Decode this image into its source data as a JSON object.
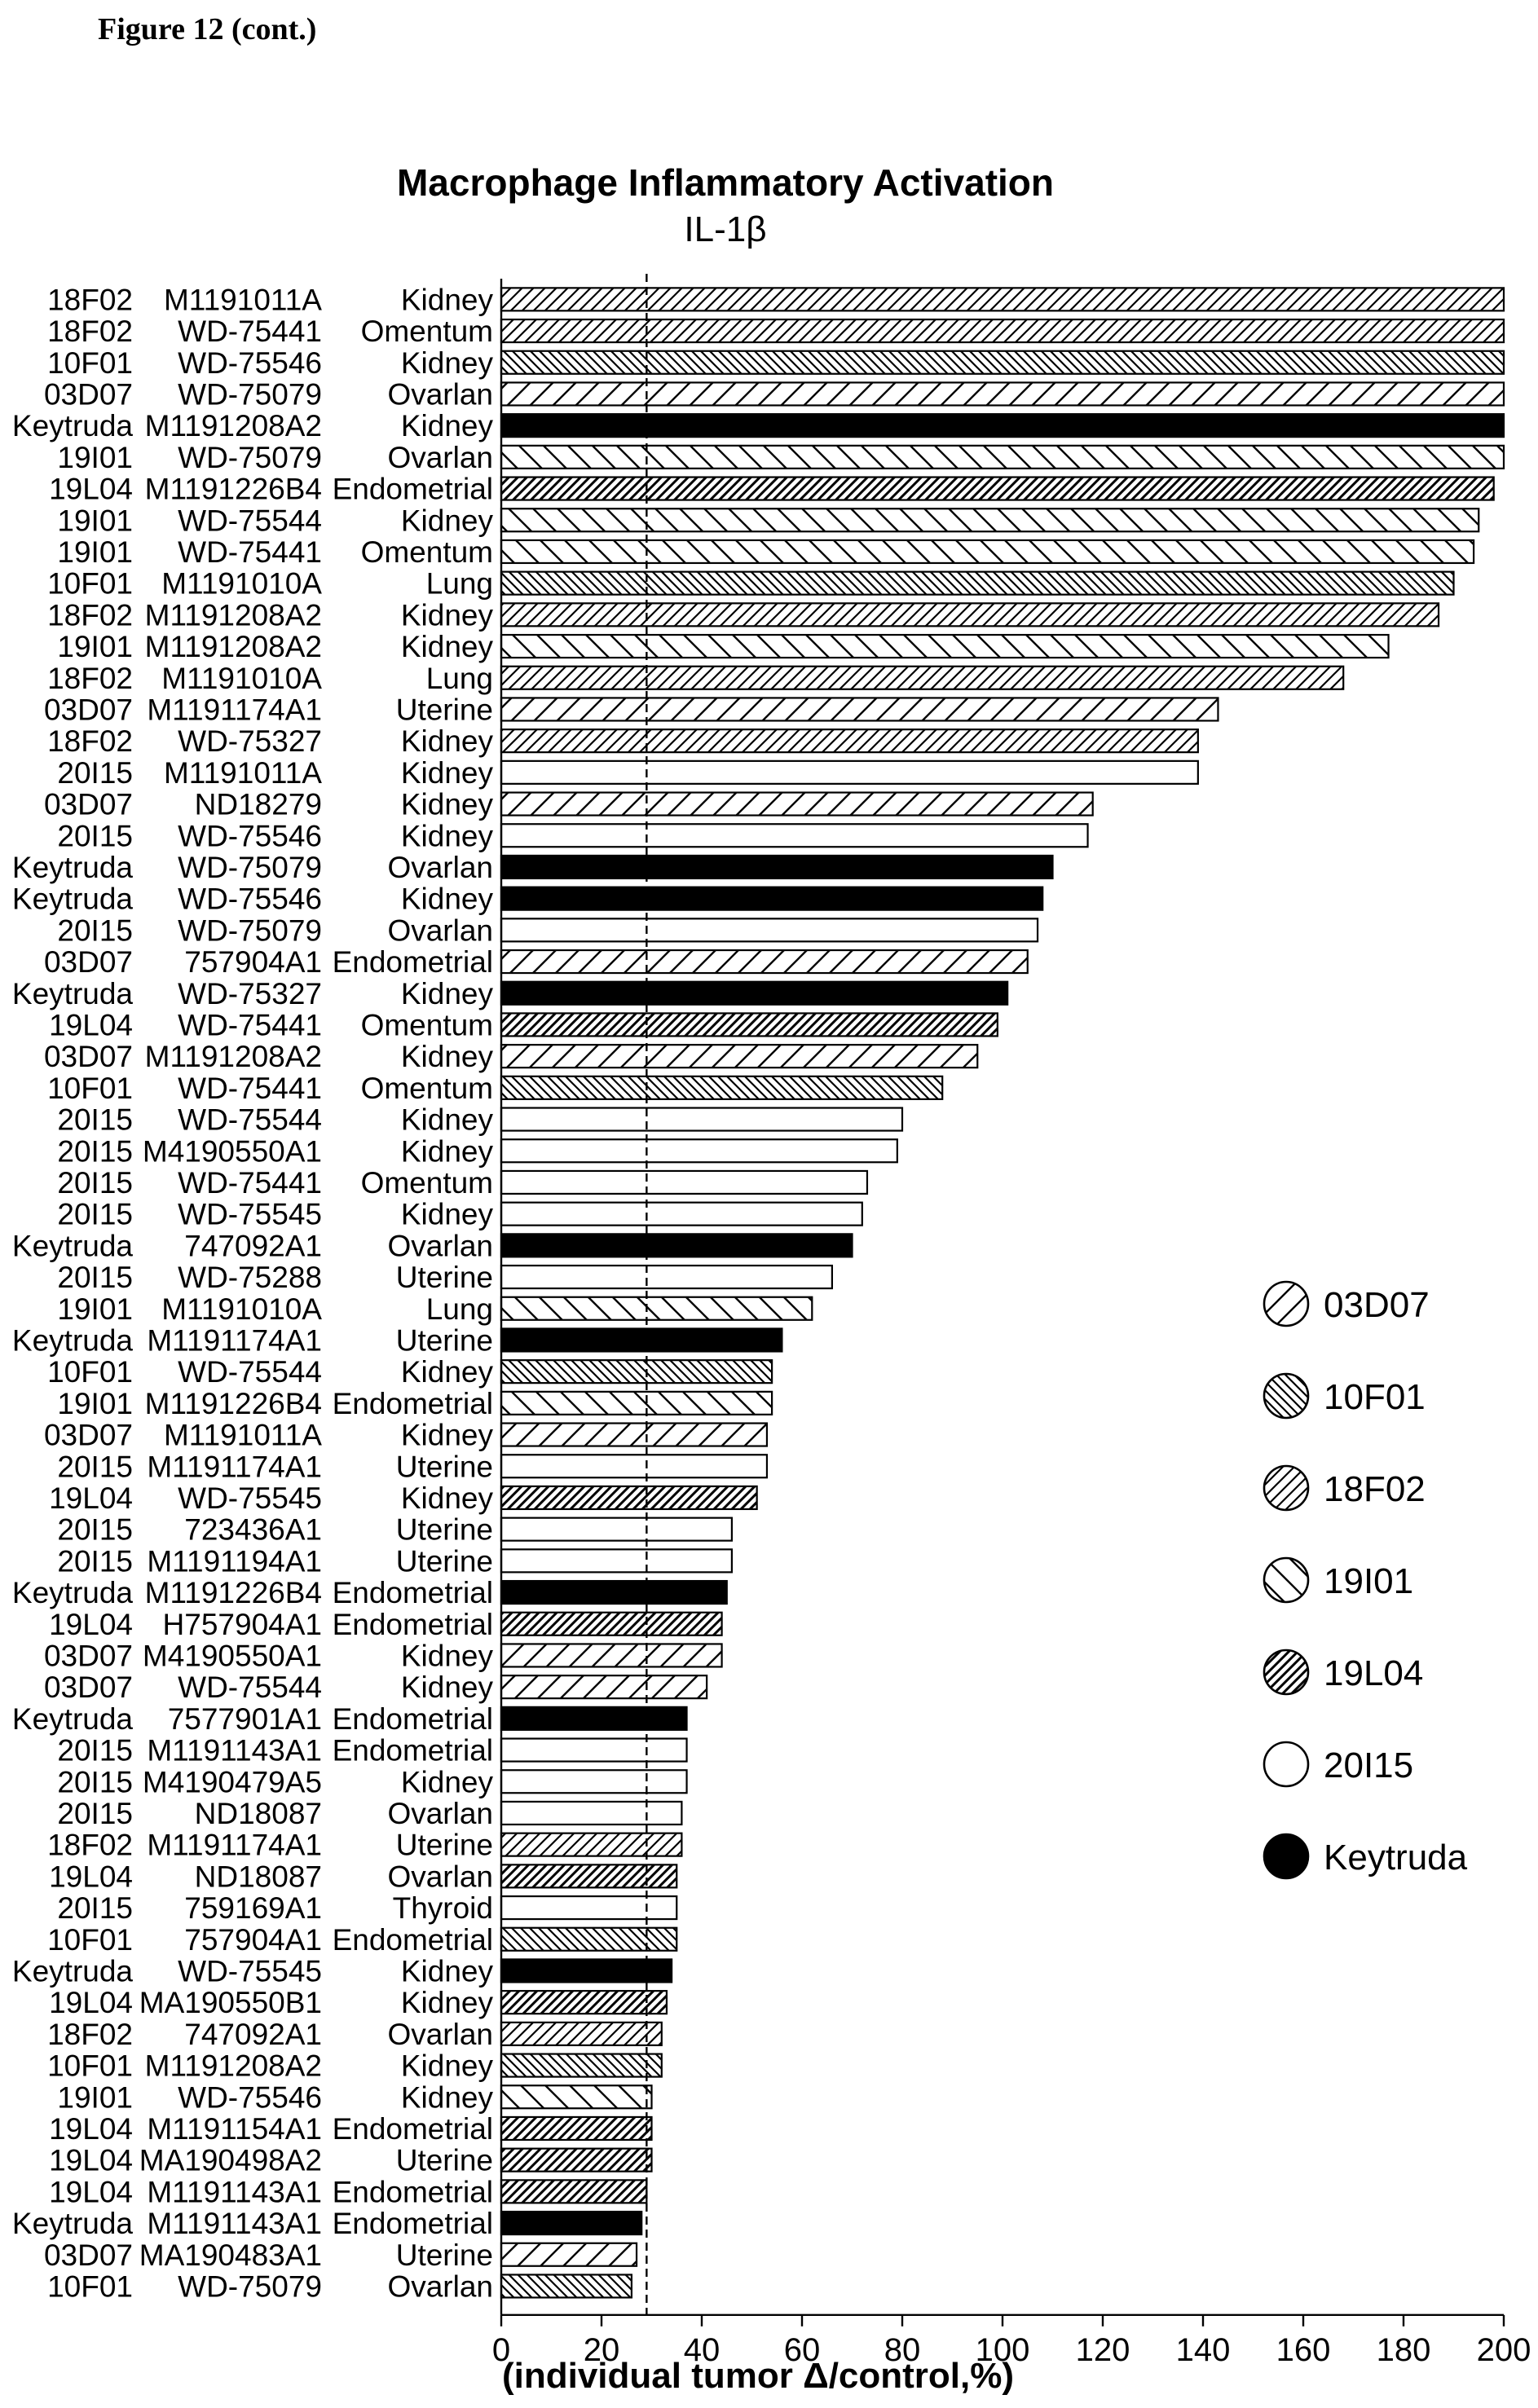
{
  "figure_label": "Figure 12 (cont.)",
  "chart_data": {
    "type": "bar",
    "orientation": "horizontal",
    "title": "Macrophage Inflammatory Activation",
    "subtitle": "IL-1β",
    "xlabel": "(individual tumor Δ/control,%)",
    "xlim": [
      0,
      200
    ],
    "xticks": [
      0,
      20,
      40,
      60,
      80,
      100,
      120,
      140,
      160,
      180,
      200
    ],
    "reference_line": 29,
    "legend_position": "right",
    "legend": [
      {
        "name": "03D07",
        "pattern": "diag-sparse"
      },
      {
        "name": "10F01",
        "pattern": "backdiag-dense"
      },
      {
        "name": "18F02",
        "pattern": "diag-dense"
      },
      {
        "name": "19I01",
        "pattern": "backdiag-sparse"
      },
      {
        "name": "19L04",
        "pattern": "diag-heavy"
      },
      {
        "name": "20I15",
        "pattern": "empty"
      },
      {
        "name": "Keytruda",
        "pattern": "solid"
      }
    ],
    "rows": [
      {
        "group": "18F02",
        "sample": "M1191011A",
        "tissue": "Kidney",
        "value": 200
      },
      {
        "group": "18F02",
        "sample": "WD-75441",
        "tissue": "Omentum",
        "value": 200
      },
      {
        "group": "10F01",
        "sample": "WD-75546",
        "tissue": "Kidney",
        "value": 200
      },
      {
        "group": "03D07",
        "sample": "WD-75079",
        "tissue": "Ovarlan",
        "value": 200
      },
      {
        "group": "Keytruda",
        "sample": "M1191208A2",
        "tissue": "Kidney",
        "value": 200
      },
      {
        "group": "19I01",
        "sample": "WD-75079",
        "tissue": "Ovarlan",
        "value": 200
      },
      {
        "group": "19L04",
        "sample": "M1191226B4",
        "tissue": "Endometrial",
        "value": 198
      },
      {
        "group": "19I01",
        "sample": "WD-75544",
        "tissue": "Kidney",
        "value": 195
      },
      {
        "group": "19I01",
        "sample": "WD-75441",
        "tissue": "Omentum",
        "value": 194
      },
      {
        "group": "10F01",
        "sample": "M1191010A",
        "tissue": "Lung",
        "value": 190
      },
      {
        "group": "18F02",
        "sample": "M1191208A2",
        "tissue": "Kidney",
        "value": 187
      },
      {
        "group": "19I01",
        "sample": "M1191208A2",
        "tissue": "Kidney",
        "value": 177
      },
      {
        "group": "18F02",
        "sample": "M1191010A",
        "tissue": "Lung",
        "value": 168
      },
      {
        "group": "03D07",
        "sample": "M1191174A1",
        "tissue": "Uterine",
        "value": 143
      },
      {
        "group": "18F02",
        "sample": "WD-75327",
        "tissue": "Kidney",
        "value": 139
      },
      {
        "group": "20I15",
        "sample": "M1191011A",
        "tissue": "Kidney",
        "value": 139
      },
      {
        "group": "03D07",
        "sample": "ND18279",
        "tissue": "Kidney",
        "value": 118
      },
      {
        "group": "20I15",
        "sample": "WD-75546",
        "tissue": "Kidney",
        "value": 117
      },
      {
        "group": "Keytruda",
        "sample": "WD-75079",
        "tissue": "Ovarlan",
        "value": 110
      },
      {
        "group": "Keytruda",
        "sample": "WD-75546",
        "tissue": "Kidney",
        "value": 108
      },
      {
        "group": "20I15",
        "sample": "WD-75079",
        "tissue": "Ovarlan",
        "value": 107
      },
      {
        "group": "03D07",
        "sample": "757904A1",
        "tissue": "Endometrial",
        "value": 105
      },
      {
        "group": "Keytruda",
        "sample": "WD-75327",
        "tissue": "Kidney",
        "value": 101
      },
      {
        "group": "19L04",
        "sample": "WD-75441",
        "tissue": "Omentum",
        "value": 99
      },
      {
        "group": "03D07",
        "sample": "M1191208A2",
        "tissue": "Kidney",
        "value": 95
      },
      {
        "group": "10F01",
        "sample": "WD-75441",
        "tissue": "Omentum",
        "value": 88
      },
      {
        "group": "20I15",
        "sample": "WD-75544",
        "tissue": "Kidney",
        "value": 80
      },
      {
        "group": "20I15",
        "sample": "M4190550A1",
        "tissue": "Kidney",
        "value": 79
      },
      {
        "group": "20I15",
        "sample": "WD-75441",
        "tissue": "Omentum",
        "value": 73
      },
      {
        "group": "20I15",
        "sample": "WD-75545",
        "tissue": "Kidney",
        "value": 72
      },
      {
        "group": "Keytruda",
        "sample": "747092A1",
        "tissue": "Ovarlan",
        "value": 70
      },
      {
        "group": "20I15",
        "sample": "WD-75288",
        "tissue": "Uterine",
        "value": 66
      },
      {
        "group": "19I01",
        "sample": "M1191010A",
        "tissue": "Lung",
        "value": 62
      },
      {
        "group": "Keytruda",
        "sample": "M1191174A1",
        "tissue": "Uterine",
        "value": 56
      },
      {
        "group": "10F01",
        "sample": "WD-75544",
        "tissue": "Kidney",
        "value": 54
      },
      {
        "group": "19I01",
        "sample": "M1191226B4",
        "tissue": "Endometrial",
        "value": 54
      },
      {
        "group": "03D07",
        "sample": "M1191011A",
        "tissue": "Kidney",
        "value": 53
      },
      {
        "group": "20I15",
        "sample": "M1191174A1",
        "tissue": "Uterine",
        "value": 53
      },
      {
        "group": "19L04",
        "sample": "WD-75545",
        "tissue": "Kidney",
        "value": 51
      },
      {
        "group": "20I15",
        "sample": "723436A1",
        "tissue": "Uterine",
        "value": 46
      },
      {
        "group": "20I15",
        "sample": "M1191194A1",
        "tissue": "Uterine",
        "value": 46
      },
      {
        "group": "Keytruda",
        "sample": "M1191226B4",
        "tissue": "Endometrial",
        "value": 45
      },
      {
        "group": "19L04",
        "sample": "H757904A1",
        "tissue": "Endometrial",
        "value": 44
      },
      {
        "group": "03D07",
        "sample": "M4190550A1",
        "tissue": "Kidney",
        "value": 44
      },
      {
        "group": "03D07",
        "sample": "WD-75544",
        "tissue": "Kidney",
        "value": 41
      },
      {
        "group": "Keytruda",
        "sample": "7577901A1",
        "tissue": "Endometrial",
        "value": 37
      },
      {
        "group": "20I15",
        "sample": "M1191143A1",
        "tissue": "Endometrial",
        "value": 37
      },
      {
        "group": "20I15",
        "sample": "M4190479A5",
        "tissue": "Kidney",
        "value": 37
      },
      {
        "group": "20I15",
        "sample": "ND18087",
        "tissue": "Ovarlan",
        "value": 36
      },
      {
        "group": "18F02",
        "sample": "M1191174A1",
        "tissue": "Uterine",
        "value": 36
      },
      {
        "group": "19L04",
        "sample": "ND18087",
        "tissue": "Ovarlan",
        "value": 35
      },
      {
        "group": "20I15",
        "sample": "759169A1",
        "tissue": "Thyroid",
        "value": 35
      },
      {
        "group": "10F01",
        "sample": "757904A1",
        "tissue": "Endometrial",
        "value": 35
      },
      {
        "group": "Keytruda",
        "sample": "WD-75545",
        "tissue": "Kidney",
        "value": 34
      },
      {
        "group": "19L04",
        "sample": "MA190550B1",
        "tissue": "Kidney",
        "value": 33
      },
      {
        "group": "18F02",
        "sample": "747092A1",
        "tissue": "Ovarlan",
        "value": 32
      },
      {
        "group": "10F01",
        "sample": "M1191208A2",
        "tissue": "Kidney",
        "value": 32
      },
      {
        "group": "19I01",
        "sample": "WD-75546",
        "tissue": "Kidney",
        "value": 30
      },
      {
        "group": "19L04",
        "sample": "M1191154A1",
        "tissue": "Endometrial",
        "value": 30
      },
      {
        "group": "19L04",
        "sample": "MA190498A2",
        "tissue": "Uterine",
        "value": 30
      },
      {
        "group": "19L04",
        "sample": "M1191143A1",
        "tissue": "Endometrial",
        "value": 29
      },
      {
        "group": "Keytruda",
        "sample": "M1191143A1",
        "tissue": "Endometrial",
        "value": 28
      },
      {
        "group": "03D07",
        "sample": "MA190483A1",
        "tissue": "Uterine",
        "value": 27
      },
      {
        "group": "10F01",
        "sample": "WD-75079",
        "tissue": "Ovarlan",
        "value": 26
      }
    ]
  }
}
